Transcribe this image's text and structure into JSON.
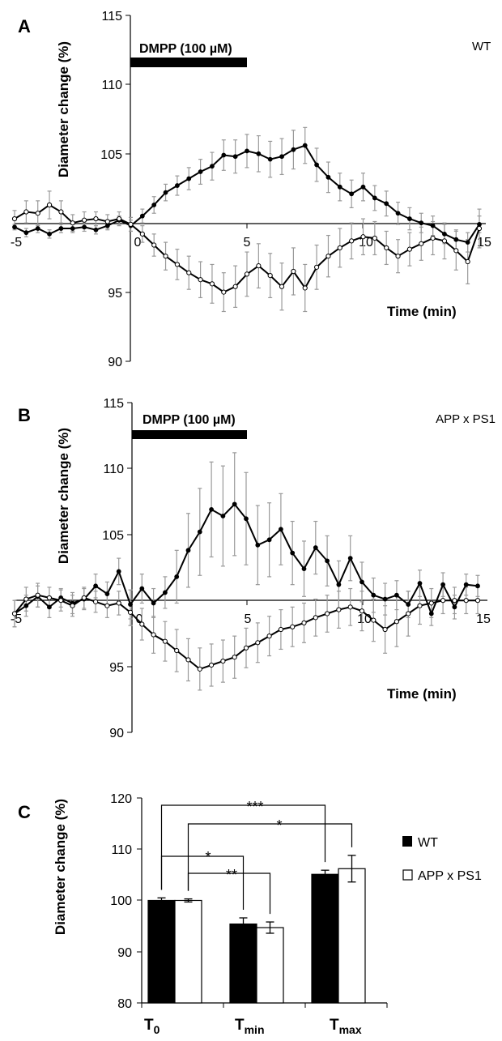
{
  "panels": [
    {
      "letter": "A",
      "title": "WT",
      "ylabel": "Diameter change (%)",
      "xlabel": "Time (min)",
      "bar_label": "DMPP (100 µM)",
      "bar_range": [
        0,
        5
      ],
      "ylim": [
        90,
        115
      ],
      "xlim": [
        -5,
        15
      ],
      "yticks": [
        "90",
        "95",
        "105",
        "110",
        "115"
      ],
      "xticks": [
        "-5",
        "0",
        "5",
        "10",
        "15"
      ]
    },
    {
      "letter": "B",
      "title": "APP x PS1",
      "ylabel": "Diameter change (%)",
      "xlabel": "Time (min)",
      "bar_label": "DMPP (100 µM)",
      "bar_range": [
        0,
        5
      ],
      "ylim": [
        90,
        115
      ],
      "xlim": [
        -5,
        15
      ],
      "yticks": [
        "90",
        "95",
        "105",
        "110",
        "115"
      ],
      "xticks": [
        "-5",
        "0",
        "5",
        "10",
        "15"
      ]
    },
    {
      "letter": "C",
      "ylabel": "Diameter change (%)",
      "yticks": [
        "80",
        "90",
        "100",
        "110",
        "120"
      ],
      "ylim": [
        80,
        120
      ],
      "categories": [
        {
          "main": "T",
          "sub": "0"
        },
        {
          "main": "T",
          "sub": "min"
        },
        {
          "main": "T",
          "sub": "max"
        }
      ],
      "legend": [
        "WT",
        "APP x PS1"
      ],
      "significance": [
        {
          "label": "***",
          "from": [
            0,
            0
          ],
          "to": [
            2,
            0
          ]
        },
        {
          "label": "*",
          "from": [
            0,
            1
          ],
          "to": [
            2,
            1
          ]
        },
        {
          "label": "*",
          "from": [
            0,
            0
          ],
          "to": [
            1,
            0
          ]
        },
        {
          "label": "**",
          "from": [
            0,
            1
          ],
          "to": [
            1,
            1
          ]
        }
      ]
    }
  ],
  "chart_data": [
    {
      "type": "line",
      "panel": "A",
      "title": "WT",
      "xlabel": "Time (min)",
      "ylabel": "Diameter change (%)",
      "xlim": [
        -5,
        15
      ],
      "ylim": [
        90,
        115
      ],
      "series": [
        {
          "marker": "filled",
          "points": [
            [
              -5.0,
              99.7,
              0.2
            ],
            [
              -4.5,
              99.3,
              0.3
            ],
            [
              -4.0,
              99.6,
              0.3
            ],
            [
              -3.5,
              99.2,
              0.3
            ],
            [
              -3.0,
              99.6,
              0.3
            ],
            [
              -2.5,
              99.6,
              0.3
            ],
            [
              -2.0,
              99.7,
              0.3
            ],
            [
              -1.5,
              99.5,
              0.3
            ],
            [
              -1.0,
              99.8,
              0.3
            ],
            [
              -0.5,
              100.2,
              0.3
            ],
            [
              0.0,
              99.8,
              0.4
            ],
            [
              0.5,
              100.5,
              0.5
            ],
            [
              1.0,
              101.3,
              0.6
            ],
            [
              1.5,
              102.2,
              0.6
            ],
            [
              2.0,
              102.7,
              0.7
            ],
            [
              2.5,
              103.2,
              0.8
            ],
            [
              3.0,
              103.7,
              0.9
            ],
            [
              3.5,
              104.1,
              1.0
            ],
            [
              4.0,
              104.9,
              1.1
            ],
            [
              4.5,
              104.8,
              1.2
            ],
            [
              5.0,
              105.2,
              1.2
            ],
            [
              5.5,
              105.0,
              1.3
            ],
            [
              6.0,
              104.6,
              1.3
            ],
            [
              6.5,
              104.8,
              1.3
            ],
            [
              7.0,
              105.3,
              1.4
            ],
            [
              7.5,
              105.6,
              1.3
            ],
            [
              8.0,
              104.2,
              1.2
            ],
            [
              8.5,
              103.3,
              1.1
            ],
            [
              9.0,
              102.6,
              1.0
            ],
            [
              9.5,
              102.1,
              1.0
            ],
            [
              10.0,
              102.6,
              1.0
            ],
            [
              10.5,
              101.8,
              0.9
            ],
            [
              11.0,
              101.4,
              0.9
            ],
            [
              11.5,
              100.7,
              0.8
            ],
            [
              12.0,
              100.3,
              0.8
            ],
            [
              12.5,
              100.0,
              0.7
            ],
            [
              13.0,
              99.8,
              0.7
            ],
            [
              13.5,
              99.2,
              0.7
            ],
            [
              14.0,
              98.8,
              0.7
            ],
            [
              14.5,
              98.6,
              0.7
            ],
            [
              15.0,
              99.9,
              0.6
            ]
          ]
        },
        {
          "marker": "open",
          "points": [
            [
              -5.0,
              100.3,
              0.6
            ],
            [
              -4.5,
              100.8,
              0.8
            ],
            [
              -4.0,
              100.7,
              0.9
            ],
            [
              -3.5,
              101.3,
              1.0
            ],
            [
              -3.0,
              100.8,
              0.8
            ],
            [
              -2.5,
              100.0,
              0.6
            ],
            [
              -2.0,
              100.2,
              0.6
            ],
            [
              -1.5,
              100.3,
              0.5
            ],
            [
              -1.0,
              100.1,
              0.5
            ],
            [
              -0.5,
              100.3,
              0.5
            ],
            [
              0.0,
              99.9,
              0.5
            ],
            [
              0.5,
              99.2,
              0.6
            ],
            [
              1.0,
              98.4,
              0.8
            ],
            [
              1.5,
              97.6,
              1.0
            ],
            [
              2.0,
              97.0,
              1.1
            ],
            [
              2.5,
              96.4,
              1.2
            ],
            [
              3.0,
              95.9,
              1.3
            ],
            [
              3.5,
              95.6,
              1.4
            ],
            [
              4.0,
              95.0,
              1.4
            ],
            [
              4.5,
              95.4,
              1.5
            ],
            [
              5.0,
              96.3,
              1.6
            ],
            [
              5.5,
              96.9,
              1.6
            ],
            [
              6.0,
              96.2,
              1.6
            ],
            [
              6.5,
              95.4,
              1.7
            ],
            [
              7.0,
              96.5,
              1.7
            ],
            [
              7.5,
              95.3,
              1.7
            ],
            [
              8.0,
              96.8,
              1.6
            ],
            [
              8.5,
              97.6,
              1.5
            ],
            [
              9.0,
              98.2,
              1.4
            ],
            [
              9.5,
              98.7,
              1.3
            ],
            [
              10.0,
              99.0,
              1.3
            ],
            [
              10.5,
              98.9,
              1.2
            ],
            [
              11.0,
              98.2,
              1.2
            ],
            [
              11.5,
              97.6,
              1.2
            ],
            [
              12.0,
              98.1,
              1.2
            ],
            [
              12.5,
              98.5,
              1.2
            ],
            [
              13.0,
              98.9,
              1.2
            ],
            [
              13.5,
              98.7,
              1.3
            ],
            [
              14.0,
              98.0,
              1.4
            ],
            [
              14.5,
              97.2,
              1.6
            ],
            [
              15.0,
              99.6,
              1.4
            ]
          ]
        }
      ],
      "annotation": {
        "label": "DMPP (100 µM)",
        "x_range": [
          0,
          5
        ]
      }
    },
    {
      "type": "line",
      "panel": "B",
      "title": "APP x PS1",
      "xlabel": "Time (min)",
      "ylabel": "Diameter change (%)",
      "xlim": [
        -5,
        15
      ],
      "ylim": [
        90,
        115
      ],
      "series": [
        {
          "marker": "filled",
          "points": [
            [
              -5.0,
              99.0,
              1.0
            ],
            [
              -4.5,
              99.6,
              0.8
            ],
            [
              -4.0,
              100.3,
              0.8
            ],
            [
              -3.5,
              99.5,
              0.8
            ],
            [
              -3.0,
              100.2,
              0.7
            ],
            [
              -2.5,
              99.8,
              0.8
            ],
            [
              -2.0,
              100.1,
              0.8
            ],
            [
              -1.5,
              101.1,
              0.9
            ],
            [
              -1.0,
              100.5,
              0.9
            ],
            [
              -0.5,
              102.2,
              1.0
            ],
            [
              0.0,
              99.7,
              1.1
            ],
            [
              0.5,
              100.9,
              1.1
            ],
            [
              1.0,
              99.8,
              1.1
            ],
            [
              1.5,
              100.6,
              1.2
            ],
            [
              2.0,
              101.8,
              2.0
            ],
            [
              2.5,
              103.8,
              2.8
            ],
            [
              3.0,
              105.2,
              3.3
            ],
            [
              3.5,
              106.9,
              3.6
            ],
            [
              4.0,
              106.4,
              3.8
            ],
            [
              4.5,
              107.3,
              3.9
            ],
            [
              5.0,
              106.2,
              3.5
            ],
            [
              5.5,
              104.2,
              3.0
            ],
            [
              6.0,
              104.6,
              2.8
            ],
            [
              6.5,
              105.4,
              2.7
            ],
            [
              7.0,
              103.6,
              2.4
            ],
            [
              7.5,
              102.4,
              2.1
            ],
            [
              8.0,
              104.0,
              2.0
            ],
            [
              8.5,
              103.0,
              1.9
            ],
            [
              9.0,
              101.2,
              1.8
            ],
            [
              9.5,
              103.2,
              1.7
            ],
            [
              10.0,
              101.4,
              1.5
            ],
            [
              10.5,
              100.4,
              1.3
            ],
            [
              11.0,
              100.1,
              1.2
            ],
            [
              11.5,
              100.4,
              1.1
            ],
            [
              12.0,
              99.7,
              1.0
            ],
            [
              12.5,
              101.3,
              1.0
            ],
            [
              13.0,
              99.0,
              0.9
            ],
            [
              13.5,
              101.2,
              0.9
            ],
            [
              14.0,
              99.5,
              0.9
            ],
            [
              14.5,
              101.2,
              0.8
            ],
            [
              15.0,
              101.1,
              0.8
            ]
          ]
        },
        {
          "marker": "open",
          "points": [
            [
              -5.0,
              99.0,
              1.0
            ],
            [
              -4.5,
              100.1,
              0.9
            ],
            [
              -4.0,
              100.4,
              0.9
            ],
            [
              -3.5,
              100.2,
              0.8
            ],
            [
              -3.0,
              100.0,
              0.8
            ],
            [
              -2.5,
              99.6,
              0.8
            ],
            [
              -2.0,
              100.2,
              0.8
            ],
            [
              -1.5,
              99.9,
              0.8
            ],
            [
              -1.0,
              99.6,
              0.9
            ],
            [
              -0.5,
              99.8,
              0.9
            ],
            [
              0.0,
              99.1,
              1.0
            ],
            [
              0.5,
              98.2,
              1.2
            ],
            [
              1.0,
              97.4,
              1.4
            ],
            [
              1.5,
              96.9,
              1.5
            ],
            [
              2.0,
              96.2,
              1.6
            ],
            [
              2.5,
              95.5,
              1.6
            ],
            [
              3.0,
              94.8,
              1.6
            ],
            [
              3.5,
              95.1,
              1.6
            ],
            [
              4.0,
              95.4,
              1.6
            ],
            [
              4.5,
              95.7,
              1.6
            ],
            [
              5.0,
              96.4,
              1.5
            ],
            [
              5.5,
              96.8,
              1.5
            ],
            [
              6.0,
              97.3,
              1.5
            ],
            [
              6.5,
              97.8,
              1.5
            ],
            [
              7.0,
              98.0,
              1.5
            ],
            [
              7.5,
              98.3,
              1.5
            ],
            [
              8.0,
              98.7,
              1.4
            ],
            [
              8.5,
              99.0,
              1.4
            ],
            [
              9.0,
              99.3,
              1.4
            ],
            [
              9.5,
              99.5,
              1.4
            ],
            [
              10.0,
              99.2,
              1.5
            ],
            [
              10.5,
              98.5,
              1.6
            ],
            [
              11.0,
              97.8,
              1.8
            ],
            [
              11.5,
              98.4,
              1.9
            ],
            [
              12.0,
              99.0,
              1.7
            ],
            [
              12.5,
              99.6,
              1.4
            ],
            [
              13.0,
              99.8,
              1.1
            ],
            [
              13.5,
              100.0,
              1.0
            ],
            [
              14.0,
              100.0,
              1.0
            ],
            [
              14.5,
              100.0,
              1.0
            ],
            [
              15.0,
              100.0,
              1.0
            ]
          ]
        }
      ],
      "annotation": {
        "label": "DMPP (100 µM)",
        "x_range": [
          0,
          5
        ]
      }
    },
    {
      "type": "bar",
      "panel": "C",
      "ylabel": "Diameter change (%)",
      "ylim": [
        80,
        120
      ],
      "categories": [
        "T0",
        "Tmin",
        "Tmax"
      ],
      "series": [
        {
          "name": "WT",
          "values": [
            100.0,
            95.4,
            105.1
          ],
          "errors": [
            0.5,
            1.2,
            0.8
          ]
        },
        {
          "name": "APP x PS1",
          "values": [
            100.0,
            94.7,
            106.2
          ],
          "errors": [
            0.3,
            1.1,
            2.6
          ]
        }
      ]
    }
  ]
}
